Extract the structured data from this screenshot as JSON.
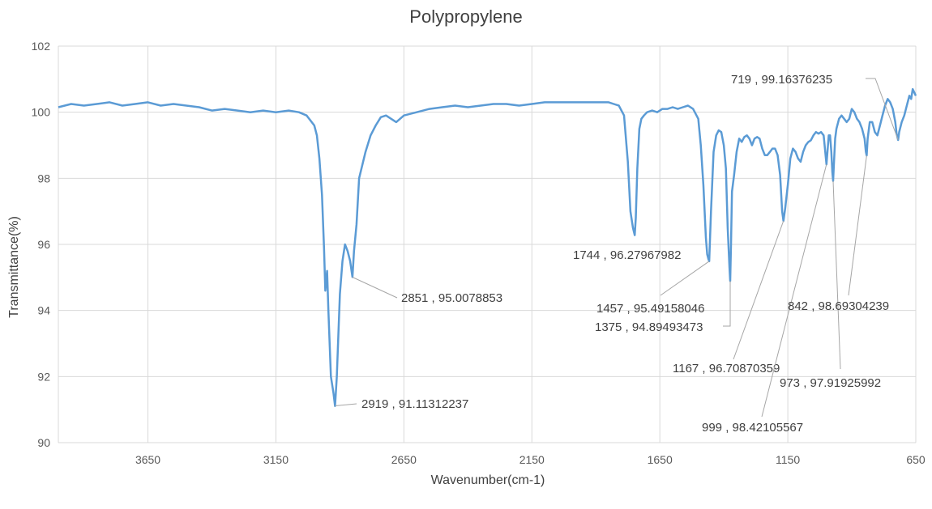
{
  "chart_data": {
    "type": "line",
    "title": "Polypropylene",
    "xlabel": "Wavenumber(cm-1)",
    "ylabel": "Transmittance(%)",
    "xlim": [
      4000,
      650
    ],
    "ylim": [
      90,
      102
    ],
    "x_reversed": true,
    "grid": "vertical and horizontal",
    "line_color": "#5B9BD5",
    "x_ticks": [
      3650,
      3150,
      2650,
      2150,
      1650,
      1150,
      650
    ],
    "y_ticks": [
      90,
      92,
      94,
      96,
      98,
      100,
      102
    ],
    "series": [
      {
        "x": [
          4000,
          3950,
          3900,
          3850,
          3800,
          3750,
          3700,
          3650,
          3600,
          3550,
          3500,
          3450,
          3400,
          3350,
          3300,
          3250,
          3200,
          3150,
          3100,
          3060,
          3030,
          3000,
          2990,
          2980,
          2970,
          2962,
          2957,
          2950,
          2945,
          2935,
          2925,
          2919,
          2912,
          2900,
          2890,
          2880,
          2870,
          2860,
          2851,
          2845,
          2835,
          2825,
          2800,
          2780,
          2760,
          2740,
          2720,
          2700,
          2680,
          2650,
          2600,
          2550,
          2500,
          2450,
          2400,
          2350,
          2300,
          2250,
          2200,
          2150,
          2100,
          2050,
          2000,
          1950,
          1900,
          1850,
          1830,
          1810,
          1790,
          1775,
          1765,
          1755,
          1748,
          1744,
          1738,
          1730,
          1722,
          1712,
          1700,
          1680,
          1660,
          1640,
          1620,
          1600,
          1580,
          1560,
          1540,
          1520,
          1500,
          1490,
          1480,
          1470,
          1465,
          1460,
          1457,
          1450,
          1440,
          1430,
          1420,
          1410,
          1400,
          1392,
          1385,
          1378,
          1375,
          1372,
          1368,
          1360,
          1350,
          1340,
          1330,
          1320,
          1310,
          1300,
          1290,
          1280,
          1270,
          1260,
          1250,
          1240,
          1230,
          1220,
          1210,
          1200,
          1190,
          1180,
          1172,
          1167,
          1160,
          1150,
          1140,
          1130,
          1120,
          1110,
          1100,
          1090,
          1080,
          1070,
          1060,
          1050,
          1040,
          1030,
          1020,
          1010,
          1005,
          999,
          995,
          990,
          985,
          980,
          976,
          973,
          970,
          965,
          960,
          950,
          940,
          930,
          920,
          910,
          900,
          890,
          880,
          870,
          860,
          850,
          845,
          842,
          838,
          830,
          820,
          810,
          800,
          790,
          780,
          770,
          760,
          750,
          740,
          730,
          725,
          719,
          715,
          705,
          695,
          685,
          675,
          668,
          662,
          656,
          650
        ],
        "y": [
          100.15,
          100.25,
          100.2,
          100.25,
          100.3,
          100.2,
          100.25,
          100.3,
          100.2,
          100.25,
          100.2,
          100.15,
          100.05,
          100.1,
          100.05,
          100.0,
          100.05,
          100.0,
          100.05,
          100.0,
          99.9,
          99.6,
          99.3,
          98.6,
          97.5,
          95.9,
          94.6,
          95.2,
          94.0,
          92.0,
          91.5,
          91.11,
          92.0,
          94.5,
          95.5,
          96.0,
          95.8,
          95.5,
          95.01,
          95.8,
          96.6,
          98.0,
          98.8,
          99.3,
          99.6,
          99.85,
          99.9,
          99.8,
          99.7,
          99.9,
          100.0,
          100.1,
          100.15,
          100.2,
          100.15,
          100.2,
          100.25,
          100.25,
          100.2,
          100.25,
          100.3,
          100.3,
          100.3,
          100.3,
          100.3,
          100.3,
          100.25,
          100.2,
          99.9,
          98.5,
          97.0,
          96.5,
          96.28,
          96.8,
          98.3,
          99.5,
          99.8,
          99.9,
          100.0,
          100.05,
          100.0,
          100.1,
          100.1,
          100.15,
          100.1,
          100.15,
          100.2,
          100.1,
          99.8,
          99.0,
          97.8,
          96.2,
          95.7,
          95.55,
          95.49,
          97.0,
          98.8,
          99.3,
          99.45,
          99.4,
          99.0,
          98.3,
          96.5,
          95.3,
          94.89,
          96.0,
          97.6,
          98.1,
          98.8,
          99.2,
          99.1,
          99.25,
          99.3,
          99.2,
          99.0,
          99.2,
          99.25,
          99.2,
          98.9,
          98.7,
          98.7,
          98.8,
          98.9,
          98.9,
          98.7,
          98.1,
          97.0,
          96.71,
          97.1,
          97.8,
          98.6,
          98.9,
          98.8,
          98.6,
          98.5,
          98.8,
          99.0,
          99.1,
          99.15,
          99.3,
          99.4,
          99.35,
          99.4,
          99.3,
          98.9,
          98.42,
          98.8,
          99.3,
          99.3,
          98.8,
          98.2,
          97.92,
          98.4,
          99.2,
          99.5,
          99.8,
          99.9,
          99.8,
          99.7,
          99.8,
          100.1,
          100.0,
          99.8,
          99.7,
          99.5,
          99.2,
          98.8,
          98.69,
          99.2,
          99.7,
          99.7,
          99.4,
          99.3,
          99.6,
          99.9,
          100.2,
          100.4,
          100.3,
          100.1,
          99.7,
          99.35,
          99.16,
          99.4,
          99.7,
          99.9,
          100.2,
          100.5,
          100.4,
          100.7,
          100.6,
          100.5
        ]
      }
    ],
    "annotations": [
      {
        "x": 2919,
        "y": 91.11312237,
        "text": "2919 , 91.11312237"
      },
      {
        "x": 2851,
        "y": 95.0078853,
        "text": "2851 , 95.0078853"
      },
      {
        "x": 1744,
        "y": 96.27967982,
        "text": "1744 , 96.27967982"
      },
      {
        "x": 1457,
        "y": 95.49158046,
        "text": "1457 , 95.49158046"
      },
      {
        "x": 1375,
        "y": 94.89493473,
        "text": "1375 , 94.89493473"
      },
      {
        "x": 1167,
        "y": 96.70870359,
        "text": "1167 , 96.70870359"
      },
      {
        "x": 999,
        "y": 98.42105567,
        "text": "999 , 98.42105567"
      },
      {
        "x": 973,
        "y": 97.91925992,
        "text": "973 , 97.91925992"
      },
      {
        "x": 842,
        "y": 98.69304239,
        "text": "842 , 98.69304239"
      },
      {
        "x": 719,
        "y": 99.16376235,
        "text": "719 , 99.16376235"
      }
    ]
  }
}
